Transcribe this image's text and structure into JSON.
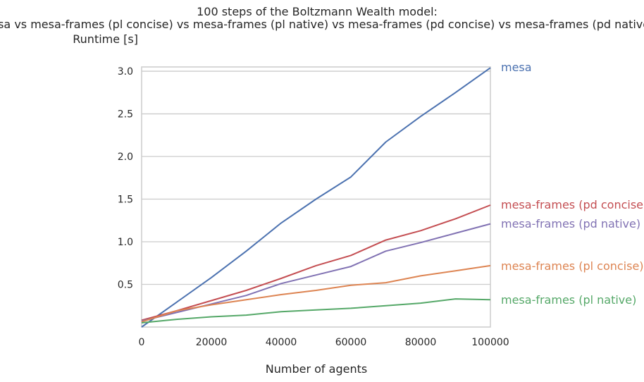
{
  "chart_data": {
    "type": "line",
    "title": "100 steps of the Boltzmann Wealth model:",
    "subtitle": "mesa vs mesa-frames (pl concise) vs mesa-frames (pl native) vs mesa-frames (pd concise) vs mesa-frames (pd native)",
    "xlabel": "Number of agents",
    "ylabel": "Runtime [s]",
    "xlim": [
      0,
      100000
    ],
    "ylim": [
      0,
      3.05
    ],
    "xticks": [
      0,
      20000,
      40000,
      60000,
      80000,
      100000
    ],
    "yticks": [
      0.5,
      1.0,
      1.5,
      2.0,
      2.5,
      3.0
    ],
    "xtick_labels": [
      "0",
      "20000",
      "40000",
      "60000",
      "80000",
      "100000"
    ],
    "ytick_labels": [
      "0.5",
      "1.0",
      "1.5",
      "2.0",
      "2.5",
      "3.0"
    ],
    "grid": "horizontal",
    "legend": "direct labels at right end of each line",
    "x": [
      0,
      10000,
      20000,
      30000,
      40000,
      50000,
      60000,
      70000,
      80000,
      90000,
      100000
    ],
    "series": [
      {
        "name": "mesa",
        "color": "#4c72b0",
        "values": [
          0.0,
          0.29,
          0.58,
          0.89,
          1.22,
          1.5,
          1.76,
          2.17,
          2.47,
          2.75,
          3.04
        ]
      },
      {
        "name": "mesa-frames (pd concise)",
        "color": "#c44e52",
        "values": [
          0.08,
          0.19,
          0.31,
          0.43,
          0.57,
          0.72,
          0.84,
          1.02,
          1.13,
          1.27,
          1.43
        ]
      },
      {
        "name": "mesa-frames (pd native)",
        "color": "#8172b3",
        "values": [
          0.07,
          0.17,
          0.27,
          0.37,
          0.51,
          0.61,
          0.71,
          0.89,
          0.99,
          1.1,
          1.21
        ]
      },
      {
        "name": "mesa-frames (pl concise)",
        "color": "#dd8452",
        "values": [
          0.06,
          0.19,
          0.26,
          0.32,
          0.38,
          0.43,
          0.49,
          0.52,
          0.6,
          0.66,
          0.72
        ]
      },
      {
        "name": "mesa-frames (pl native)",
        "color": "#55a868",
        "values": [
          0.05,
          0.09,
          0.12,
          0.14,
          0.18,
          0.2,
          0.22,
          0.25,
          0.28,
          0.33,
          0.32
        ]
      }
    ]
  }
}
